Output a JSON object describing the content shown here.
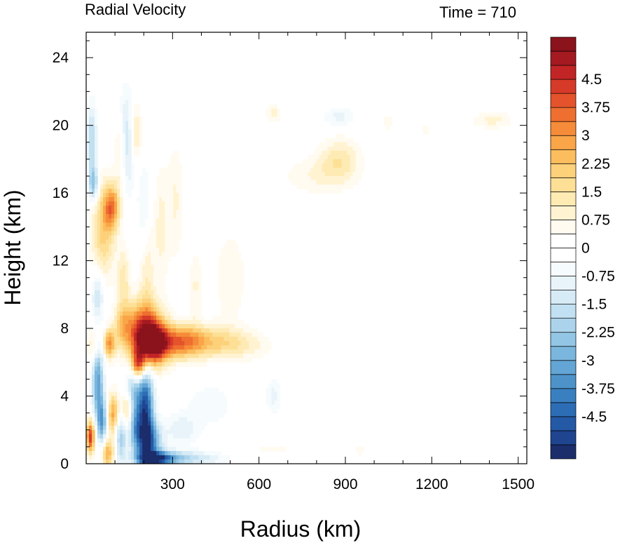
{
  "chart_data": {
    "type": "heatmap",
    "title": "Radial Velocity",
    "subtitle": "Time = 710",
    "xlabel": "Radius (km)",
    "ylabel": "Height (km)",
    "xlim": [
      0,
      1530
    ],
    "ylim": [
      0,
      25.5
    ],
    "x_ticks": [
      300,
      600,
      900,
      1200,
      1500
    ],
    "x_tick_labels": [
      "300",
      "600",
      "900",
      "1200",
      "1500"
    ],
    "y_ticks": [
      0,
      4,
      8,
      12,
      16,
      20,
      24
    ],
    "y_tick_labels": [
      "0",
      "4",
      "8",
      "12",
      "16",
      "20",
      "24"
    ],
    "colorbar": {
      "levels": [
        -5.25,
        -4.875,
        -4.5,
        -4.125,
        -3.75,
        -3.375,
        -3,
        -2.625,
        -2.25,
        -1.875,
        -1.5,
        -1.125,
        -0.75,
        -0.375,
        0,
        0.375,
        0.75,
        1.125,
        1.5,
        1.875,
        2.25,
        2.625,
        3,
        3.375,
        3.75,
        4.125,
        4.5,
        4.875,
        5.25
      ],
      "tick_labels": [
        "-4.5",
        "-3.75",
        "-3",
        "-2.25",
        "-1.5",
        "-0.75",
        "0",
        "0.75",
        "1.5",
        "2.25",
        "3",
        "3.75",
        "4.5"
      ],
      "tick_values": [
        -4.5,
        -3.75,
        -3,
        -2.25,
        -1.5,
        -0.75,
        0,
        0.75,
        1.5,
        2.25,
        3,
        3.75,
        4.5
      ],
      "colors": [
        "#1b2d6b",
        "#1f4590",
        "#2459a6",
        "#2c6db5",
        "#3a80c0",
        "#4d93ca",
        "#63a5d4",
        "#7ab6dd",
        "#93c6e5",
        "#abd4ec",
        "#c1e0f1",
        "#d6ebf6",
        "#e8f4fa",
        "#f6fbfd",
        "#ffffff",
        "#ffffff",
        "#fffbf0",
        "#fff3d2",
        "#feeab3",
        "#fddf96",
        "#fdd07a",
        "#fbbd5e",
        "#f9a548",
        "#f68b39",
        "#ee6f30",
        "#e4532b",
        "#d63a28",
        "#c22526",
        "#a51a21",
        "#8a131c"
      ]
    },
    "features": [
      {
        "x": 200,
        "y": 7.6,
        "sx": 45,
        "sy": 1.3,
        "v": 5.0
      },
      {
        "x": 235,
        "y": 7.1,
        "sx": 35,
        "sy": 0.8,
        "v": 3.5
      },
      {
        "x": 320,
        "y": 7.2,
        "sx": 60,
        "sy": 0.7,
        "v": 3.0
      },
      {
        "x": 430,
        "y": 7.2,
        "sx": 80,
        "sy": 0.7,
        "v": 1.6
      },
      {
        "x": 550,
        "y": 7.0,
        "sx": 70,
        "sy": 0.6,
        "v": 0.8
      },
      {
        "x": 80,
        "y": 7.1,
        "sx": 15,
        "sy": 0.6,
        "v": 3.0
      },
      {
        "x": 125,
        "y": 8.3,
        "sx": 20,
        "sy": 0.9,
        "v": 1.5
      },
      {
        "x": 25,
        "y": 7.0,
        "sx": 15,
        "sy": 0.8,
        "v": 1.3
      },
      {
        "x": 205,
        "y": 3.2,
        "sx": 20,
        "sy": 2.0,
        "v": -5.0
      },
      {
        "x": 220,
        "y": 1.2,
        "sx": 30,
        "sy": 0.9,
        "v": -3.2
      },
      {
        "x": 245,
        "y": 0.3,
        "sx": 45,
        "sy": 0.3,
        "v": -4.0
      },
      {
        "x": 340,
        "y": 0.3,
        "sx": 90,
        "sy": 0.3,
        "v": -1.8
      },
      {
        "x": 160,
        "y": 4.5,
        "sx": 18,
        "sy": 1.4,
        "v": -2.2
      },
      {
        "x": 40,
        "y": 4.9,
        "sx": 14,
        "sy": 1.6,
        "v": -3.2
      },
      {
        "x": 55,
        "y": 2.5,
        "sx": 12,
        "sy": 1.0,
        "v": -3.0
      },
      {
        "x": 120,
        "y": 1.8,
        "sx": 15,
        "sy": 1.2,
        "v": -2.4
      },
      {
        "x": 170,
        "y": 2.0,
        "sx": 15,
        "sy": 1.0,
        "v": -2.0
      },
      {
        "x": 15,
        "y": 1.6,
        "sx": 10,
        "sy": 0.7,
        "v": 4.5
      },
      {
        "x": 95,
        "y": 2.9,
        "sx": 15,
        "sy": 0.9,
        "v": 3.0
      },
      {
        "x": 140,
        "y": 3.2,
        "sx": 15,
        "sy": 0.8,
        "v": 2.5
      },
      {
        "x": 75,
        "y": 0.6,
        "sx": 15,
        "sy": 0.6,
        "v": 2.8
      },
      {
        "x": 180,
        "y": 5.8,
        "sx": 18,
        "sy": 0.6,
        "v": 3.8
      },
      {
        "x": 60,
        "y": 13.8,
        "sx": 30,
        "sy": 2.0,
        "v": 2.0
      },
      {
        "x": 90,
        "y": 15.2,
        "sx": 20,
        "sy": 0.9,
        "v": 2.8
      },
      {
        "x": 25,
        "y": 16.5,
        "sx": 12,
        "sy": 0.7,
        "v": -2.5
      },
      {
        "x": 20,
        "y": 19.0,
        "sx": 12,
        "sy": 1.5,
        "v": -2.0
      },
      {
        "x": 40,
        "y": 10.0,
        "sx": 15,
        "sy": 1.0,
        "v": -1.6
      },
      {
        "x": 140,
        "y": 19.0,
        "sx": 20,
        "sy": 2.0,
        "v": -2.0
      },
      {
        "x": 120,
        "y": 18.5,
        "sx": 15,
        "sy": 1.5,
        "v": 1.6
      },
      {
        "x": 170,
        "y": 19.5,
        "sx": 15,
        "sy": 1.3,
        "v": 1.6
      },
      {
        "x": 130,
        "y": 11.0,
        "sx": 15,
        "sy": 1.2,
        "v": 1.3
      },
      {
        "x": 210,
        "y": 11.5,
        "sx": 18,
        "sy": 2.0,
        "v": 1.1
      },
      {
        "x": 260,
        "y": 14.0,
        "sx": 18,
        "sy": 2.5,
        "v": 0.9
      },
      {
        "x": 310,
        "y": 15.5,
        "sx": 20,
        "sy": 2.5,
        "v": 0.8
      },
      {
        "x": 200,
        "y": 15.0,
        "sx": 15,
        "sy": 2.0,
        "v": -0.9
      },
      {
        "x": 380,
        "y": 10.5,
        "sx": 15,
        "sy": 1.5,
        "v": 0.8
      },
      {
        "x": 880,
        "y": 18.0,
        "sx": 50,
        "sy": 0.9,
        "v": 1.3
      },
      {
        "x": 800,
        "y": 17.0,
        "sx": 90,
        "sy": 0.8,
        "v": 0.7
      },
      {
        "x": 880,
        "y": 20.5,
        "sx": 40,
        "sy": 0.4,
        "v": -0.9
      },
      {
        "x": 650,
        "y": 20.7,
        "sx": 20,
        "sy": 0.4,
        "v": 0.9
      },
      {
        "x": 1410,
        "y": 20.3,
        "sx": 50,
        "sy": 0.35,
        "v": 0.9
      },
      {
        "x": 1050,
        "y": 20.2,
        "sx": 15,
        "sy": 0.3,
        "v": 0.7
      },
      {
        "x": 1180,
        "y": 19.8,
        "sx": 12,
        "sy": 0.3,
        "v": 0.6
      },
      {
        "x": 650,
        "y": 4.0,
        "sx": 20,
        "sy": 0.7,
        "v": -0.9
      },
      {
        "x": 430,
        "y": 3.5,
        "sx": 60,
        "sy": 1.0,
        "v": -0.6
      },
      {
        "x": 330,
        "y": 2.0,
        "sx": 40,
        "sy": 0.7,
        "v": -1.0
      },
      {
        "x": 500,
        "y": 11.0,
        "sx": 40,
        "sy": 2.0,
        "v": 0.7
      },
      {
        "x": 650,
        "y": 0.9,
        "sx": 40,
        "sy": 0.2,
        "v": 0.7
      },
      {
        "x": 950,
        "y": 0.8,
        "sx": 20,
        "sy": 0.2,
        "v": 0.6
      }
    ]
  }
}
